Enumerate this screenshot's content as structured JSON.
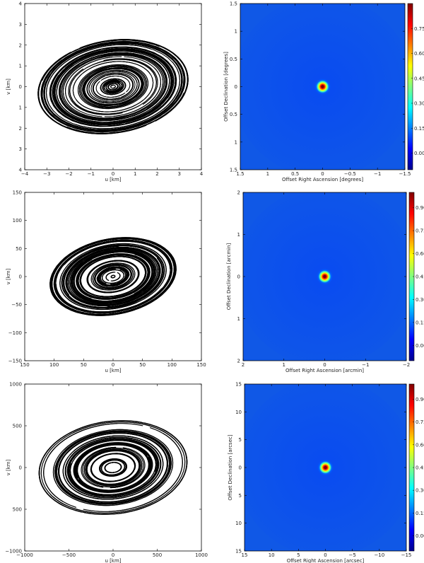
{
  "colorbar_colors": [
    "#00008f",
    "#0000ff",
    "#0080ff",
    "#00ffff",
    "#80ff80",
    "#ffff00",
    "#ff8000",
    "#ff0000",
    "#800000"
  ],
  "chart_data": [
    {
      "type": "scatter",
      "name": "uv-coverage-top",
      "xlabel": "u [km]",
      "ylabel": "v [km]",
      "xlim": [
        -4,
        4
      ],
      "ylim": [
        -4,
        4
      ],
      "xticks": [
        "−4",
        "−3",
        "−2",
        "−1",
        "0",
        "1",
        "2",
        "3",
        "4"
      ],
      "yticks": [
        "4",
        "3",
        "2",
        "1",
        "0",
        "1",
        "2",
        "3",
        "4"
      ],
      "arcs": {
        "count": 70,
        "max_radius": 3.5,
        "ellipticity": 0.65,
        "tilt_deg": 10,
        "gap_fraction": 0.18,
        "style": "dense"
      }
    },
    {
      "type": "heatmap",
      "name": "beam-top",
      "xlabel": "Offset Right Ascension [degrees]",
      "ylabel": "Offset Declination [degrees]",
      "xlim": [
        1.8,
        -1.8
      ],
      "ylim": [
        -1.8,
        1.8
      ],
      "xticks": [
        "1.5",
        "1",
        "0.5",
        "0",
        "−0.5",
        "−1",
        "−1.5"
      ],
      "yticks": [
        "1.5",
        "1",
        "0.5",
        "0",
        "0.5",
        "1",
        "1.5"
      ],
      "colorbar_ticks": [
        "0.75",
        "0.60",
        "0.45",
        "0.30",
        "0.15",
        "0.00"
      ],
      "colorbar_range": [
        -0.1,
        0.9
      ]
    },
    {
      "type": "scatter",
      "name": "uv-coverage-middle",
      "xlabel": "u [km]",
      "ylabel": "v [km]",
      "xlim": [
        -150,
        150
      ],
      "ylim": [
        -150,
        150
      ],
      "xticks": [
        "150",
        "100",
        "50",
        "0",
        "50",
        "100",
        "150"
      ],
      "yticks": [
        "150",
        "100",
        "50",
        "0",
        "−50",
        "−100",
        "−150"
      ],
      "arcs": {
        "count": 55,
        "max_radius": 110,
        "ellipticity": 0.62,
        "tilt_deg": 12,
        "gap_fraction": 0.22,
        "style": "medium"
      }
    },
    {
      "type": "heatmap",
      "name": "beam-middle",
      "xlabel": "Offset Right Ascension [arcmin]",
      "ylabel": "Offset Declination [arcmin]",
      "xlim": [
        2.8,
        -2.8
      ],
      "ylim": [
        -2.8,
        2.8
      ],
      "xticks": [
        "2",
        "1",
        "0",
        "−1",
        "−2"
      ],
      "yticks": [
        "2",
        "1",
        "0",
        "1",
        "2"
      ],
      "colorbar_ticks": [
        "0.90",
        "0.75",
        "0.60",
        "0.45",
        "0.30",
        "0.15",
        "0.00"
      ],
      "colorbar_range": [
        -0.1,
        1.0
      ]
    },
    {
      "type": "scatter",
      "name": "uv-coverage-bottom",
      "xlabel": "u [km]",
      "ylabel": "v [km]",
      "xlim": [
        -1200,
        1200
      ],
      "ylim": [
        -1200,
        1200
      ],
      "xticks": [
        "−1000",
        "−500",
        "0",
        "500",
        "1000"
      ],
      "yticks": [
        "1000",
        "500",
        "0",
        "500",
        "−1000"
      ],
      "arcs": {
        "count": 48,
        "max_radius": 1050,
        "ellipticity": 0.66,
        "tilt_deg": 8,
        "gap_fraction": 0.3,
        "style": "sparse"
      }
    },
    {
      "type": "heatmap",
      "name": "beam-bottom",
      "xlabel": "Offset Right Ascension [arcsec]",
      "ylabel": "Offset Declination [arcsec]",
      "xlim": [
        16,
        -16
      ],
      "ylim": [
        -16,
        16
      ],
      "xticks": [
        "15",
        "10",
        "5",
        "0",
        "−5",
        "−10",
        "−15"
      ],
      "yticks": [
        "15",
        "10",
        "5",
        "0",
        "5",
        "10",
        "15"
      ],
      "colorbar_ticks": [
        "0.90",
        "0.75",
        "0.60",
        "0.45",
        "0.30",
        "0.15",
        "0.00"
      ],
      "colorbar_range": [
        -0.1,
        1.0
      ]
    }
  ]
}
